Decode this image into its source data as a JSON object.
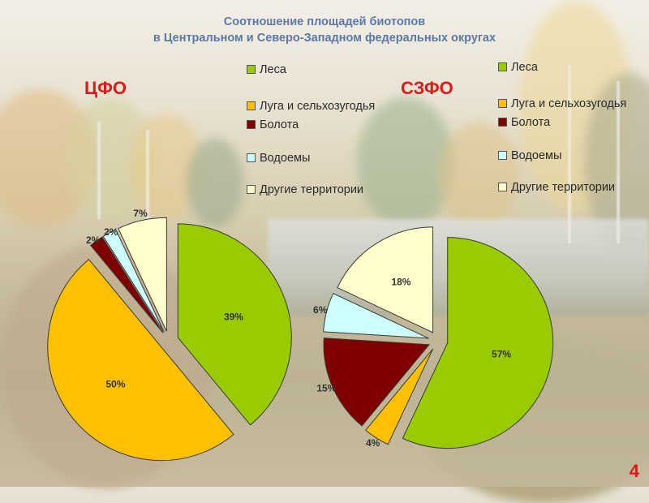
{
  "title_line1": "Соотношение площадей биотопов",
  "title_line2": "в Центральном и Северо-Западном федеральных округах",
  "page_number": "4",
  "colors": {
    "forests": "#99cc00",
    "meadows": "#ffc000",
    "swamps": "#800000",
    "water": "#ccffff",
    "other": "#ffffcc"
  },
  "chart_data": [
    {
      "type": "pie",
      "title": "ЦФО",
      "categories": [
        "Леса",
        "Луга и сельхозугодья",
        "Болота",
        "Водоемы",
        "Другие территории"
      ],
      "values": [
        39,
        50,
        2,
        2,
        7
      ],
      "labels": [
        "39%",
        "50%",
        "2%",
        "2%",
        "7%"
      ],
      "legend_position": "right"
    },
    {
      "type": "pie",
      "title": "СЗФО",
      "categories": [
        "Леса",
        "Луга и сельхозугодья",
        "Болота",
        "Водоемы",
        "Другие территории"
      ],
      "values": [
        57,
        4,
        15,
        6,
        18
      ],
      "labels": [
        "57%",
        "4%",
        "15%",
        "6%",
        "18%"
      ],
      "legend_position": "right"
    }
  ],
  "legend": [
    {
      "label": "Леса",
      "color": "#99cc00"
    },
    {
      "label": "Луга и сельхозугодья",
      "color": "#ffc000"
    },
    {
      "label": "Болота",
      "color": "#800000"
    },
    {
      "label": "Водоемы",
      "color": "#ccffff"
    },
    {
      "label": "Другие территории",
      "color": "#ffffcc"
    }
  ]
}
